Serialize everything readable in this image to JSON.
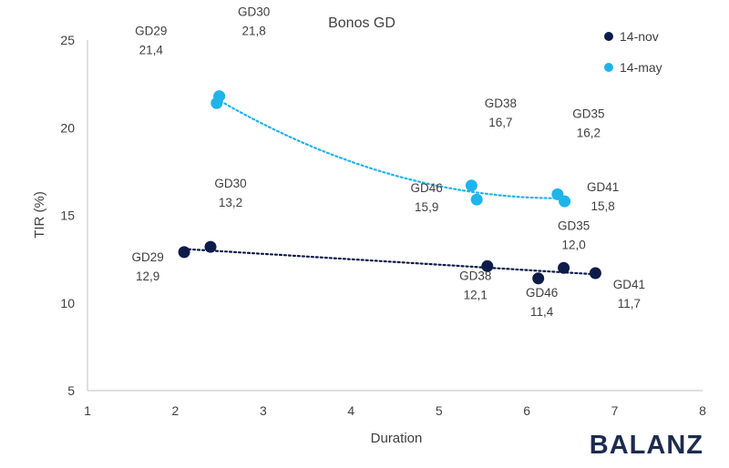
{
  "chart_data": {
    "type": "scatter",
    "title": "Bonos GD",
    "xlabel": "Duration",
    "ylabel": "TIR (%)",
    "xlim": [
      1,
      8
    ],
    "ylim": [
      5,
      25
    ],
    "xticks": [
      "1",
      "2",
      "3",
      "4",
      "5",
      "6",
      "7",
      "8"
    ],
    "yticks": [
      "5",
      "10",
      "15",
      "20",
      "25"
    ],
    "grid": false,
    "legend_position": "top-right",
    "series": [
      {
        "name": "14-nov",
        "color": "#0d1b4b",
        "trendline": "linear",
        "trendline_style": "dotted",
        "points": [
          {
            "label": "GD29",
            "value_label": "12,9",
            "x": 2.1,
            "y": 12.9
          },
          {
            "label": "GD30",
            "value_label": "13,2",
            "x": 2.4,
            "y": 13.2
          },
          {
            "label": "GD38",
            "value_label": "12,1",
            "x": 5.55,
            "y": 12.1
          },
          {
            "label": "GD46",
            "value_label": "11,4",
            "x": 6.13,
            "y": 11.4
          },
          {
            "label": "GD35",
            "value_label": "12,0",
            "x": 6.42,
            "y": 12.0
          },
          {
            "label": "GD41",
            "value_label": "11,7",
            "x": 6.78,
            "y": 11.7
          }
        ]
      },
      {
        "name": "14-may",
        "color": "#1fb4ea",
        "trendline": "polynomial",
        "trendline_style": "dotted",
        "points": [
          {
            "label": "GD29",
            "value_label": "21,4",
            "x": 2.47,
            "y": 21.4
          },
          {
            "label": "GD30",
            "value_label": "21,8",
            "x": 2.5,
            "y": 21.8
          },
          {
            "label": "GD38",
            "value_label": "16,7",
            "x": 5.37,
            "y": 16.7
          },
          {
            "label": "GD46",
            "value_label": "15,9",
            "x": 5.43,
            "y": 15.9
          },
          {
            "label": "GD35",
            "value_label": "16,2",
            "x": 6.35,
            "y": 16.2
          },
          {
            "label": "GD41",
            "value_label": "15,8",
            "x": 6.43,
            "y": 15.8
          }
        ]
      }
    ]
  },
  "brand": {
    "logo_text": "BALANZ",
    "color": "#1d2b4f"
  }
}
